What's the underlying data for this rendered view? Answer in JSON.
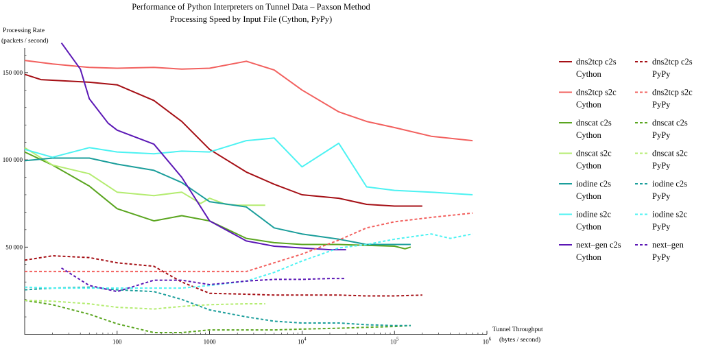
{
  "chart_data": {
    "type": "line",
    "title": "Performance of Python Interpreters on Tunnel Data – Paxson Method",
    "subtitle": "Processing Speed by Input File (Cython, PyPy)",
    "ylabel_line1": "Processing Rate",
    "ylabel_line2": "(packets / second)",
    "xlabel_line1": "Tunnel Throughput",
    "xlabel_line2": "(bytes / second)",
    "x_scale": "log",
    "xlim": [
      10,
      1000000
    ],
    "ylim": [
      0,
      170000
    ],
    "x_ticks": [
      {
        "value": 100,
        "label": "100",
        "sup": ""
      },
      {
        "value": 1000,
        "label": "1000",
        "sup": ""
      },
      {
        "value": 10000,
        "label": "10",
        "sup": "4"
      },
      {
        "value": 100000,
        "label": "10",
        "sup": "5"
      },
      {
        "value": 1000000,
        "label": "10",
        "sup": "6"
      }
    ],
    "y_ticks": [
      {
        "value": 50000,
        "label": "50 000"
      },
      {
        "value": 100000,
        "label": "100 000"
      },
      {
        "value": 150000,
        "label": "150 000"
      }
    ],
    "grid": false,
    "legend_position": "right",
    "series": [
      {
        "name": "dns2tcp c2s Cython",
        "color": "#a50f15",
        "dash": false,
        "x": [
          10,
          15,
          50,
          100,
          250,
          500,
          1000,
          2500,
          5000,
          10000,
          25000,
          50000,
          100000,
          200000
        ],
        "y": [
          149000,
          146000,
          144500,
          143000,
          134000,
          122000,
          106000,
          93000,
          86000,
          80000,
          78000,
          74500,
          73500,
          73500
        ]
      },
      {
        "name": "dns2tcp s2c Cython",
        "color": "#f2605e",
        "dash": false,
        "x": [
          10,
          20,
          50,
          100,
          250,
          500,
          1000,
          2500,
          5000,
          10000,
          25000,
          50000,
          100000,
          250000,
          700000
        ],
        "y": [
          157000,
          155000,
          153000,
          152500,
          153000,
          152000,
          152500,
          156500,
          151500,
          140000,
          127500,
          122000,
          118500,
          113500,
          111000
        ]
      },
      {
        "name": "dnscat c2s Cython",
        "color": "#5aa51f",
        "dash": false,
        "x": [
          10,
          20,
          50,
          100,
          250,
          500,
          1000,
          2500,
          5000,
          10000,
          25000,
          50000,
          100000,
          130000,
          150000
        ],
        "y": [
          104500,
          97000,
          85000,
          72000,
          65000,
          68000,
          65000,
          55000,
          52500,
          51500,
          51500,
          51000,
          50500,
          49000,
          50000
        ]
      },
      {
        "name": "dnscat s2c Cython",
        "color": "#b4ec70",
        "dash": false,
        "x": [
          10,
          20,
          50,
          100,
          250,
          500,
          800,
          1000,
          1500,
          2000,
          4000
        ],
        "y": [
          107000,
          97000,
          92000,
          81500,
          79500,
          81500,
          75000,
          78000,
          74500,
          74000,
          74000
        ]
      },
      {
        "name": "iodine c2s Cython",
        "color": "#1b9e9b",
        "dash": false,
        "x": [
          10,
          20,
          50,
          100,
          250,
          500,
          1000,
          2500,
          5000,
          10000,
          25000,
          50000,
          100000,
          150000
        ],
        "y": [
          99500,
          101000,
          101000,
          97500,
          94000,
          87000,
          76000,
          73000,
          61000,
          57500,
          54500,
          51500,
          51500,
          51500
        ]
      },
      {
        "name": "iodine s2c Cython",
        "color": "#4cf2f2",
        "dash": false,
        "x": [
          10,
          20,
          50,
          100,
          250,
          500,
          1000,
          2500,
          5000,
          10000,
          25000,
          50000,
          100000,
          250000,
          700000
        ],
        "y": [
          106000,
          101500,
          107000,
          104500,
          103500,
          105000,
          104500,
          111000,
          112500,
          96000,
          109500,
          84500,
          82500,
          81500,
          80000
        ]
      },
      {
        "name": "next–gen c2s Cython",
        "color": "#5b17b5",
        "dash": false,
        "x": [
          25,
          40,
          50,
          80,
          100,
          250,
          500,
          1000,
          2500,
          5000,
          10000,
          20000,
          30000
        ],
        "y": [
          167000,
          152000,
          135000,
          121000,
          117000,
          109000,
          90000,
          65000,
          53500,
          50500,
          49500,
          48500,
          48500
        ]
      },
      {
        "name": "dns2tcp c2s PyPy",
        "color": "#a50f15",
        "dash": true,
        "x": [
          10,
          20,
          50,
          100,
          250,
          500,
          1000,
          2500,
          5000,
          10000,
          25000,
          50000,
          100000,
          200000
        ],
        "y": [
          42500,
          45000,
          44000,
          41000,
          39000,
          30000,
          23500,
          23000,
          22500,
          22500,
          22500,
          22000,
          22000,
          22500
        ]
      },
      {
        "name": "dns2tcp s2c PyPy",
        "color": "#f2605e",
        "dash": true,
        "x": [
          10,
          20,
          50,
          100,
          250,
          500,
          1000,
          2500,
          5000,
          10000,
          25000,
          50000,
          100000,
          250000,
          700000
        ],
        "y": [
          36000,
          36000,
          36000,
          36000,
          36000,
          36000,
          36000,
          36000,
          41000,
          46000,
          54000,
          61000,
          64500,
          67000,
          69500
        ]
      },
      {
        "name": "dnscat c2s PyPy",
        "color": "#5aa51f",
        "dash": true,
        "x": [
          10,
          20,
          50,
          100,
          250,
          500,
          1000,
          2500,
          5000,
          10000,
          25000,
          50000,
          100000,
          150000
        ],
        "y": [
          19500,
          17000,
          11500,
          6000,
          1000,
          1000,
          2500,
          2500,
          2500,
          3000,
          3500,
          4000,
          4500,
          5000
        ]
      },
      {
        "name": "dnscat s2c PyPy",
        "color": "#b4ec70",
        "dash": true,
        "x": [
          10,
          20,
          50,
          100,
          250,
          500,
          1000,
          2500,
          4000
        ],
        "y": [
          19500,
          19000,
          17500,
          15500,
          14500,
          16000,
          17000,
          17500,
          17500
        ]
      },
      {
        "name": "iodine c2s PyPy",
        "color": "#1b9e9b",
        "dash": true,
        "x": [
          10,
          20,
          50,
          100,
          250,
          500,
          1000,
          2500,
          5000,
          10000,
          25000,
          50000,
          100000,
          150000
        ],
        "y": [
          25500,
          26500,
          27000,
          25500,
          24500,
          20000,
          14000,
          10000,
          7500,
          6500,
          6500,
          5500,
          5000,
          5000
        ]
      },
      {
        "name": "iodine s2c PyPy",
        "color": "#4cf2f2",
        "dash": true,
        "x": [
          10,
          20,
          50,
          100,
          250,
          500,
          1000,
          2500,
          5000,
          10000,
          25000,
          50000,
          100000,
          250000,
          400000,
          700000
        ],
        "y": [
          27000,
          26500,
          26500,
          26500,
          26500,
          26500,
          28000,
          30500,
          35500,
          42000,
          49500,
          51500,
          54500,
          57500,
          55000,
          57500
        ]
      },
      {
        "name": "next–gen c2s PyPy",
        "color": "#5b17b5",
        "dash": true,
        "x": [
          25,
          50,
          100,
          250,
          500,
          1000,
          2500,
          5000,
          10000,
          20000,
          30000
        ],
        "y": [
          38000,
          28000,
          24500,
          31000,
          31000,
          28500,
          30500,
          31500,
          31500,
          32000,
          32000
        ]
      }
    ]
  },
  "legend": [
    {
      "line1": "dns2tcp c2s",
      "line2": "Cython",
      "color": "#a50f15",
      "dash": false
    },
    {
      "line1": "dns2tcp s2c",
      "line2": "Cython",
      "color": "#f2605e",
      "dash": false
    },
    {
      "line1": "dnscat c2s",
      "line2": "Cython",
      "color": "#5aa51f",
      "dash": false
    },
    {
      "line1": "dnscat s2c",
      "line2": "Cython",
      "color": "#b4ec70",
      "dash": false
    },
    {
      "line1": "iodine c2s",
      "line2": "Cython",
      "color": "#1b9e9b",
      "dash": false
    },
    {
      "line1": "iodine s2c",
      "line2": "Cython",
      "color": "#4cf2f2",
      "dash": false
    },
    {
      "line1": "next–gen c2s",
      "line2": "Cython",
      "color": "#5b17b5",
      "dash": false
    },
    {
      "line1": "dns2tcp c2s",
      "line2": "PyPy",
      "color": "#a50f15",
      "dash": true
    },
    {
      "line1": "dns2tcp s2c",
      "line2": "PyPy",
      "color": "#f2605e",
      "dash": true
    },
    {
      "line1": "dnscat c2s",
      "line2": "PyPy",
      "color": "#5aa51f",
      "dash": true
    },
    {
      "line1": "dnscat s2c",
      "line2": "PyPy",
      "color": "#b4ec70",
      "dash": true
    },
    {
      "line1": "iodine c2s",
      "line2": "PyPy",
      "color": "#1b9e9b",
      "dash": true
    },
    {
      "line1": "iodine s2c",
      "line2": "PyPy",
      "color": "#4cf2f2",
      "dash": true
    },
    {
      "line1": "next–gen",
      "line2": "PyPy",
      "color": "#5b17b5",
      "dash": true
    }
  ]
}
